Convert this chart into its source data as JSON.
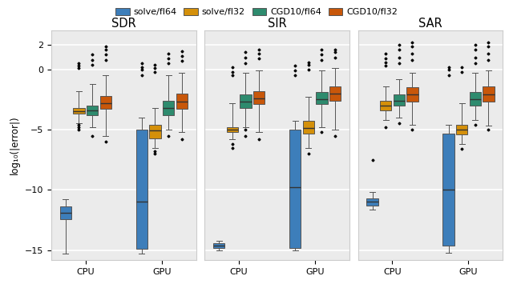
{
  "titles": [
    "SDR",
    "SIR",
    "SAR"
  ],
  "ylabel": "log₁₀(|error|)",
  "xlabels": [
    "CPU",
    "GPU"
  ],
  "legend_labels": [
    "solve/fl64",
    "solve/fl32",
    "CGD10/fl64",
    "CGD10/fl32"
  ],
  "colors": [
    "#3d7eba",
    "#d4900a",
    "#2e8b6e",
    "#c8570a"
  ],
  "edge_color": "#555555",
  "median_color": "#333333",
  "flier_color": "#333333",
  "bg_color": "#ebebeb",
  "grid_color": "#ffffff",
  "ylim": [
    -15.8,
    3.2
  ],
  "yticks": [
    -15,
    -10,
    -5,
    0,
    2
  ],
  "SDR": {
    "CPU": {
      "solve_fl64": {
        "whislo": -15.3,
        "q1": -12.4,
        "med": -11.9,
        "q3": -11.4,
        "whishi": -10.8,
        "fliers": []
      },
      "solve_fl32": {
        "whislo": -4.5,
        "q1": -3.7,
        "med": -3.5,
        "q3": -3.2,
        "whishi": -1.8,
        "fliers": [
          -5.0,
          -4.8,
          -4.6,
          0.1,
          0.3,
          0.5
        ]
      },
      "CGD10_fl64": {
        "whislo": -4.8,
        "q1": -3.8,
        "med": -3.4,
        "q3": -3.0,
        "whishi": -1.2,
        "fliers": [
          -5.5,
          0.4,
          0.8,
          1.2
        ]
      },
      "CGD10_fl32": {
        "whislo": -5.5,
        "q1": -3.3,
        "med": -2.8,
        "q3": -2.2,
        "whishi": -0.5,
        "fliers": [
          -6.0,
          0.8,
          1.2,
          1.6,
          1.9
        ]
      }
    },
    "GPU": {
      "solve_fl64": {
        "whislo": -15.3,
        "q1": -14.9,
        "med": -11.0,
        "q3": -5.0,
        "whishi": -4.0,
        "fliers": [
          -0.5,
          0.0,
          0.2,
          0.5
        ]
      },
      "solve_fl32": {
        "whislo": -6.5,
        "q1": -5.7,
        "med": -5.1,
        "q3": -4.6,
        "whishi": -3.2,
        "fliers": [
          -7.0,
          -6.8,
          -0.2,
          0.1,
          0.4
        ]
      },
      "CGD10_fl64": {
        "whislo": -5.0,
        "q1": -3.8,
        "med": -3.2,
        "q3": -2.6,
        "whishi": -0.5,
        "fliers": [
          -5.5,
          0.5,
          0.9,
          1.3
        ]
      },
      "CGD10_fl32": {
        "whislo": -5.2,
        "q1": -3.3,
        "med": -2.7,
        "q3": -2.0,
        "whishi": -0.3,
        "fliers": [
          -5.8,
          0.7,
          1.1,
          1.5
        ]
      }
    }
  },
  "SIR": {
    "CPU": {
      "solve_fl64": {
        "whislo": -15.0,
        "q1": -14.8,
        "med": -14.6,
        "q3": -14.4,
        "whishi": -14.2,
        "fliers": []
      },
      "solve_fl32": {
        "whislo": -5.8,
        "q1": -5.2,
        "med": -5.0,
        "q3": -4.8,
        "whishi": -2.8,
        "fliers": [
          -6.2,
          -6.5,
          -0.5,
          -0.2,
          0.2
        ]
      },
      "CGD10_fl64": {
        "whislo": -4.8,
        "q1": -3.2,
        "med": -2.7,
        "q3": -2.1,
        "whishi": -0.3,
        "fliers": [
          -5.5,
          -5.0,
          0.5,
          1.0,
          1.4
        ]
      },
      "CGD10_fl32": {
        "whislo": -5.2,
        "q1": -2.9,
        "med": -2.4,
        "q3": -1.8,
        "whishi": -0.1,
        "fliers": [
          -5.8,
          0.9,
          1.3,
          1.6
        ]
      }
    },
    "GPU": {
      "solve_fl64": {
        "whislo": -15.0,
        "q1": -14.8,
        "med": -9.8,
        "q3": -5.0,
        "whishi": -4.3,
        "fliers": [
          -0.5,
          -0.1,
          0.3
        ]
      },
      "solve_fl32": {
        "whislo": -6.5,
        "q1": -5.3,
        "med": -4.9,
        "q3": -4.3,
        "whishi": -2.3,
        "fliers": [
          -7.0,
          0.0,
          0.4,
          0.6
        ]
      },
      "CGD10_fl64": {
        "whislo": -4.8,
        "q1": -2.9,
        "med": -2.5,
        "q3": -1.9,
        "whishi": -0.1,
        "fliers": [
          -5.2,
          0.8,
          1.2,
          1.6
        ]
      },
      "CGD10_fl32": {
        "whislo": -5.0,
        "q1": -2.6,
        "med": -2.0,
        "q3": -1.4,
        "whishi": 0.1,
        "fliers": [
          -5.5,
          1.0,
          1.4,
          1.6
        ]
      }
    }
  },
  "SAR": {
    "CPU": {
      "solve_fl64": {
        "whislo": -11.6,
        "q1": -11.3,
        "med": -11.0,
        "q3": -10.7,
        "whishi": -10.2,
        "fliers": [
          -7.5
        ]
      },
      "solve_fl32": {
        "whislo": -4.2,
        "q1": -3.4,
        "med": -3.0,
        "q3": -2.6,
        "whishi": -1.4,
        "fliers": [
          -4.8,
          0.3,
          0.6,
          0.9,
          1.3
        ]
      },
      "CGD10_fl64": {
        "whislo": -4.0,
        "q1": -3.0,
        "med": -2.6,
        "q3": -2.1,
        "whishi": -0.8,
        "fliers": [
          -4.5,
          0.5,
          1.0,
          1.6,
          2.0
        ]
      },
      "CGD10_fl32": {
        "whislo": -4.6,
        "q1": -2.7,
        "med": -2.1,
        "q3": -1.5,
        "whishi": -0.3,
        "fliers": [
          -5.0,
          0.8,
          1.3,
          1.9,
          2.2
        ]
      }
    },
    "GPU": {
      "solve_fl64": {
        "whislo": -15.2,
        "q1": -14.6,
        "med": -10.0,
        "q3": -5.3,
        "whishi": -4.6,
        "fliers": [
          -0.5,
          0.0,
          0.2
        ]
      },
      "solve_fl32": {
        "whislo": -6.2,
        "q1": -5.4,
        "med": -5.0,
        "q3": -4.6,
        "whishi": -2.8,
        "fliers": [
          -6.6,
          -0.2,
          0.2
        ]
      },
      "CGD10_fl64": {
        "whislo": -4.2,
        "q1": -3.0,
        "med": -2.5,
        "q3": -1.9,
        "whishi": -0.3,
        "fliers": [
          -4.6,
          0.5,
          1.0,
          1.6,
          2.0
        ]
      },
      "CGD10_fl32": {
        "whislo": -4.7,
        "q1": -2.7,
        "med": -2.1,
        "q3": -1.4,
        "whishi": -0.1,
        "fliers": [
          -5.0,
          0.8,
          1.3,
          1.9,
          2.2
        ]
      }
    }
  }
}
